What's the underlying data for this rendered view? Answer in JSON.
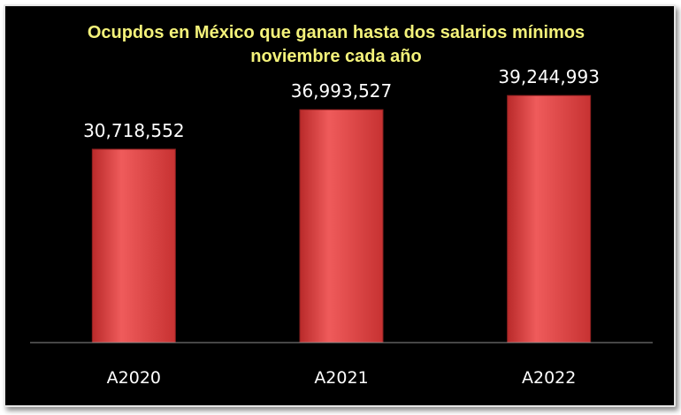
{
  "chart_data": {
    "type": "bar",
    "title_lines": [
      "Ocupdos en México que ganan hasta dos salarios mínimos",
      "noviembre cada año"
    ],
    "categories": [
      "A2020",
      "A2021",
      "A2022"
    ],
    "values": [
      30718552,
      36993527,
      39244993
    ],
    "value_labels": [
      "30,718,552",
      "36,993,527",
      "39,244,993"
    ],
    "xlabel": "",
    "ylabel": "",
    "ylim": [
      0,
      46000000
    ],
    "grid": false,
    "legend": "none",
    "colors": {
      "background": "#000000",
      "bar": "#d63a3a",
      "bar_highlight": "#ee6b6b",
      "title": "#f4f27a",
      "text": "#ffffff",
      "axis": "#8c8c8c"
    }
  }
}
